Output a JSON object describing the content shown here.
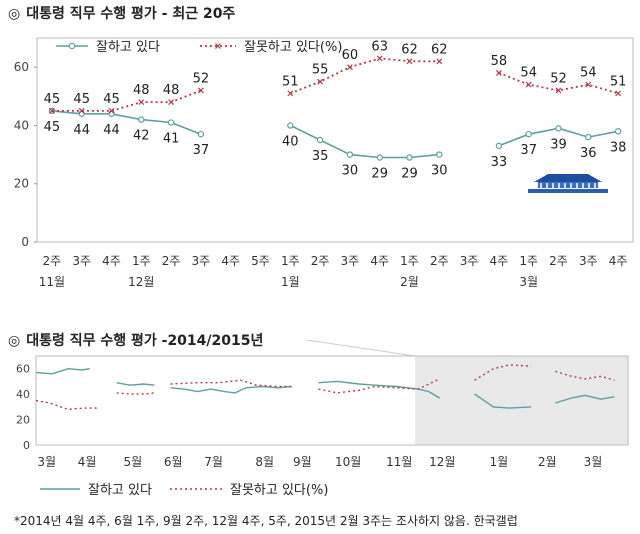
{
  "chart_top": {
    "title": "대통령 직무 수행 평가 - 최근 20주",
    "bullet": "◎",
    "chart_data": {
      "type": "line",
      "categories": [
        "2주",
        "3주",
        "4주",
        "1주",
        "2주",
        "3주",
        "4주",
        "5주",
        "1주",
        "2주",
        "3주",
        "4주",
        "1주",
        "2주",
        "3주",
        "4주",
        "1주",
        "2주",
        "3주",
        "4주"
      ],
      "months": [
        {
          "label": "11월",
          "index": 0
        },
        {
          "label": "12월",
          "index": 3
        },
        {
          "label": "1월",
          "index": 8
        },
        {
          "label": "2월",
          "index": 12
        },
        {
          "label": "3월",
          "index": 16
        }
      ],
      "yticks": [
        0,
        20,
        40,
        60
      ],
      "ylim": [
        0,
        70
      ],
      "series": [
        {
          "name": "잘하고 있다",
          "color": "#5f9ea0",
          "style": "solid",
          "values": [
            45,
            44,
            44,
            42,
            41,
            37,
            null,
            null,
            40,
            35,
            30,
            29,
            29,
            30,
            null,
            33,
            37,
            39,
            36,
            38
          ]
        },
        {
          "name": "잘못하고 있다(%)",
          "color": "#b03a48",
          "style": "dotted",
          "values": [
            45,
            45,
            45,
            48,
            48,
            52,
            null,
            null,
            51,
            55,
            60,
            63,
            62,
            62,
            null,
            58,
            54,
            52,
            54,
            51
          ]
        }
      ],
      "labels_top": [
        45,
        45,
        45,
        48,
        48,
        52,
        null,
        null,
        51,
        55,
        60,
        63,
        62,
        62,
        null,
        58,
        54,
        52,
        54,
        51
      ],
      "labels_bottom": [
        45,
        44,
        44,
        42,
        41,
        37,
        null,
        null,
        40,
        35,
        30,
        29,
        29,
        30,
        null,
        33,
        37,
        39,
        36,
        38
      ]
    }
  },
  "chart_bottom": {
    "title": "대통령 직무 수행 평가 -2014/2015년",
    "bullet": "◎",
    "chart_data": {
      "type": "line",
      "months": [
        "3월",
        "4월",
        "5월",
        "6월",
        "7월",
        "8월",
        "9월",
        "10월",
        "11월",
        "12월",
        "1월",
        "2월",
        "3월"
      ],
      "yticks": [
        0,
        20,
        40,
        60
      ],
      "ylim": [
        0,
        70
      ],
      "series": [
        {
          "name": "잘하고 있다",
          "color": "#5f9ea0",
          "style": "solid",
          "segments": [
            [
              [
                0.0,
                57
              ],
              [
                0.6,
                56
              ],
              [
                1.2,
                60
              ],
              [
                1.7,
                59
              ],
              [
                2.0,
                60
              ]
            ],
            [
              [
                3.0,
                49
              ],
              [
                3.5,
                47
              ],
              [
                4.0,
                48
              ],
              [
                4.4,
                47
              ]
            ],
            [
              [
                5.0,
                45
              ],
              [
                5.5,
                44
              ],
              [
                6.0,
                42
              ],
              [
                6.5,
                44
              ],
              [
                7.0,
                42
              ],
              [
                7.4,
                41
              ],
              [
                7.8,
                45
              ],
              [
                8.4,
                46
              ],
              [
                9.0,
                45
              ],
              [
                9.5,
                46
              ]
            ],
            [
              [
                10.5,
                49
              ],
              [
                11.2,
                50
              ],
              [
                12.0,
                48
              ],
              [
                12.6,
                47
              ],
              [
                13.4,
                46
              ],
              [
                14.2,
                44
              ],
              [
                14.6,
                42
              ],
              [
                15.0,
                37
              ]
            ],
            [
              [
                16.3,
                40
              ],
              [
                17.0,
                30
              ],
              [
                17.6,
                29
              ],
              [
                18.4,
                30
              ]
            ],
            [
              [
                19.3,
                33
              ],
              [
                19.9,
                37
              ],
              [
                20.4,
                39
              ],
              [
                21.0,
                36
              ],
              [
                21.5,
                38
              ]
            ]
          ]
        },
        {
          "name": "잘못하고 있다(%)",
          "color": "#b03a48",
          "style": "dotted",
          "segments": [
            [
              [
                0.0,
                35
              ],
              [
                0.5,
                33
              ],
              [
                1.2,
                28
              ],
              [
                1.8,
                29
              ],
              [
                2.3,
                29
              ]
            ],
            [
              [
                3.0,
                41
              ],
              [
                3.5,
                40
              ],
              [
                4.0,
                40
              ],
              [
                4.4,
                41
              ]
            ],
            [
              [
                5.0,
                48
              ],
              [
                6.0,
                49
              ],
              [
                6.8,
                49
              ],
              [
                7.6,
                51
              ],
              [
                8.2,
                47
              ],
              [
                9.0,
                46
              ],
              [
                9.5,
                46
              ]
            ],
            [
              [
                10.5,
                44
              ],
              [
                11.2,
                41
              ],
              [
                12.0,
                43
              ],
              [
                12.6,
                46
              ],
              [
                13.4,
                45
              ],
              [
                14.2,
                44
              ],
              [
                14.6,
                48
              ],
              [
                15.0,
                52
              ]
            ],
            [
              [
                16.3,
                51
              ],
              [
                17.0,
                60
              ],
              [
                17.6,
                63
              ],
              [
                18.4,
                62
              ]
            ],
            [
              [
                19.3,
                58
              ],
              [
                19.9,
                54
              ],
              [
                20.4,
                52
              ],
              [
                21.0,
                54
              ],
              [
                21.5,
                51
              ]
            ]
          ]
        }
      ]
    }
  },
  "legend": {
    "good": "잘하고 있다",
    "bad": "잘못하고 있다(%)"
  },
  "footnote": "*2014년 4월 4주, 6월 1주, 9월 2주, 12월 4주, 5주, 2015년 2월 3주는 조사하지 않음. 한국갤럽"
}
